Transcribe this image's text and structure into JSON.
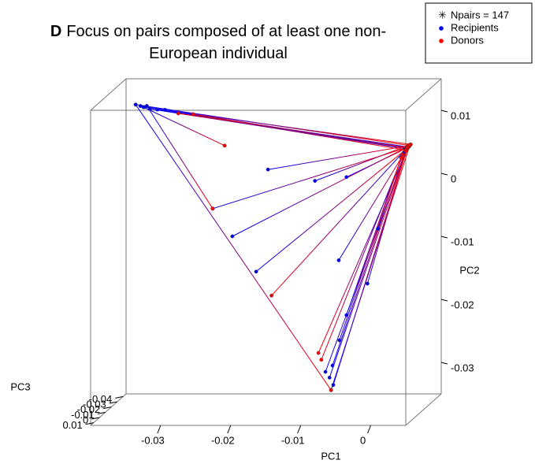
{
  "chart_data": {
    "type": "scatter3d",
    "panel_label": "D",
    "title": "Focus on pairs composed of at least one non-European individual",
    "legend": {
      "annotation": "Npairs =  147",
      "position": "top-right"
    },
    "xlabel": "PC1",
    "ylabel": "PC2",
    "zlabel": "PC3",
    "xlim": [
      -0.04,
      0.005
    ],
    "ylim": [
      -0.035,
      0.015
    ],
    "zlim": [
      -0.045,
      0.015
    ],
    "xticks": [
      -0.03,
      -0.02,
      -0.01,
      0
    ],
    "yticks": [
      0.01,
      0,
      -0.01,
      -0.02,
      -0.03
    ],
    "zticks": [
      -0.04,
      -0.03,
      -0.02,
      -0.01,
      0,
      0.01
    ],
    "series": [
      {
        "name": "Recipients",
        "color": "#0000ff",
        "pc1": [
          -0.0361,
          -0.0355,
          -0.0348,
          -0.034,
          -0.033,
          -0.032,
          0.0027,
          0.0025,
          -0.0082,
          -0.0078,
          -0.0085,
          -0.009,
          -0.008,
          0.0022,
          0.0028,
          -0.007,
          -0.006,
          -0.003,
          -0.0172,
          -0.0251,
          -0.0223,
          0.0028,
          -0.0189,
          -0.0105,
          -0.006,
          -0.0015,
          -0.0071,
          -0.035,
          -0.0361,
          -0.0345
        ],
        "pc2": [
          0.0134,
          0.0131,
          0.013,
          0.0128,
          0.0126,
          0.0125,
          0.0067,
          0.0065,
          -0.0319,
          -0.031,
          -0.03,
          -0.029,
          -0.028,
          0.0058,
          0.0066,
          -0.024,
          -0.02,
          -0.015,
          0.0031,
          -0.0031,
          -0.0075,
          0.0067,
          -0.0131,
          0.0013,
          0.0019,
          -0.0063,
          -0.0113,
          0.013,
          0.0134,
          0.0132
        ],
        "pc3": [
          -0.015,
          -0.016,
          -0.015,
          -0.014,
          -0.015,
          -0.016,
          -0.015,
          -0.014,
          -0.015,
          -0.014,
          -0.016,
          -0.015,
          -0.015,
          -0.015,
          -0.015,
          -0.015,
          -0.015,
          -0.015,
          -0.015,
          -0.015,
          -0.015,
          -0.015,
          -0.015,
          -0.015,
          -0.015,
          -0.015,
          -0.015,
          -0.015,
          -0.015,
          -0.015
        ]
      },
      {
        "name": "Donors",
        "color": "#ff0000",
        "pc1": [
          0.003,
          0.0028,
          0.0031,
          0.0026,
          0.0029,
          0.0024,
          -0.03,
          -0.028,
          0.003,
          0.0027,
          0.0029,
          0.0026,
          0.0024,
          -0.0095,
          -0.01,
          0.002,
          0.0018,
          0.0025,
          0.003,
          0.0027,
          0.0029,
          -0.0167,
          0.0026,
          0.003,
          0.0028,
          0.0027,
          0.0029,
          -0.0234,
          -0.0082,
          -0.0251
        ],
        "pc2": [
          0.0069,
          0.0066,
          0.007,
          0.0064,
          0.0068,
          0.0062,
          0.012,
          0.0118,
          0.0068,
          0.0065,
          0.007,
          0.0063,
          0.0061,
          -0.027,
          -0.026,
          0.0055,
          0.005,
          0.006,
          0.0069,
          0.0066,
          0.0068,
          -0.0169,
          0.0064,
          0.007,
          0.0066,
          0.0067,
          0.0069,
          0.0069,
          -0.0319,
          -0.0031
        ],
        "pc3": [
          -0.015,
          -0.014,
          -0.016,
          -0.015,
          -0.013,
          -0.015,
          -0.015,
          -0.016,
          -0.015,
          -0.015,
          -0.014,
          -0.016,
          -0.015,
          -0.014,
          -0.015,
          -0.015,
          -0.015,
          -0.015,
          -0.015,
          -0.015,
          -0.015,
          -0.015,
          -0.015,
          -0.015,
          -0.015,
          -0.015,
          -0.015,
          -0.015,
          -0.015,
          -0.015
        ]
      }
    ]
  }
}
